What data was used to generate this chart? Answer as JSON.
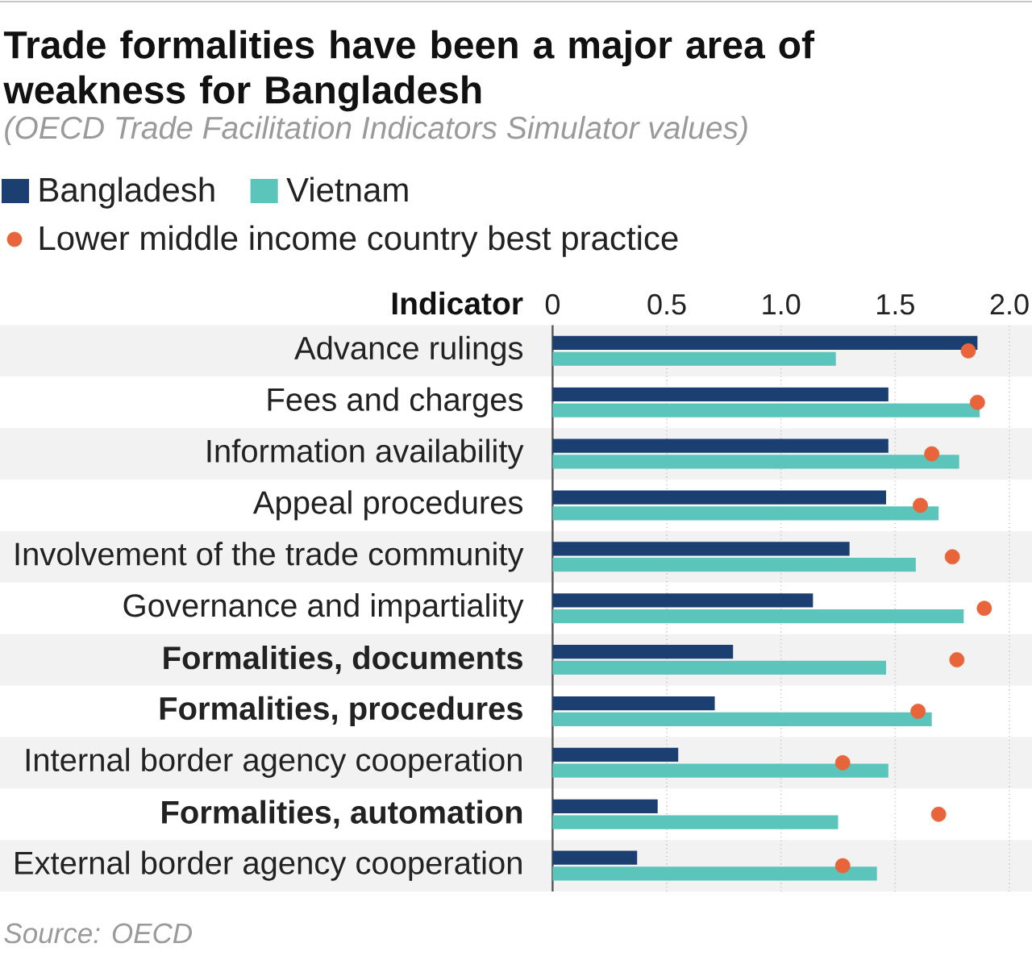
{
  "chart_data": {
    "type": "bar",
    "orientation": "horizontal",
    "title": "Trade formalities have been a major area of weakness for Bangladesh",
    "subtitle": "(OECD Trade Facilitation Indicators Simulator values)",
    "ylabel": "Indicator",
    "categories": [
      "Advance rulings",
      "Fees and charges",
      "Information availability",
      "Appeal procedures",
      "Involvement of the trade community",
      "Governance and impartiality",
      "**Formalities, documents**",
      "**Formalities, procedures**",
      "Internal border agency cooperation",
      "**Formalities, automation**",
      "External border agency cooperation"
    ],
    "series": [
      {
        "name": "Bangladesh",
        "color": "#1b3f70",
        "values": [
          1.86,
          1.47,
          1.47,
          1.46,
          1.3,
          1.14,
          0.79,
          0.71,
          0.55,
          0.46,
          0.37
        ]
      },
      {
        "name": "Vietnam",
        "color": "#5bc5bb",
        "values": [
          1.24,
          1.87,
          1.78,
          1.69,
          1.59,
          1.8,
          1.46,
          1.66,
          1.47,
          1.25,
          1.42
        ]
      },
      {
        "name": "Lower middle income country best practice",
        "type": "scatter",
        "marker": "circle",
        "color": "#e8643a",
        "values": [
          1.82,
          1.86,
          1.66,
          1.61,
          1.75,
          1.89,
          1.77,
          1.6,
          1.27,
          1.69,
          1.27
        ]
      }
    ],
    "xlim": [
      0,
      2
    ],
    "xticks": [
      0,
      0.5,
      {
        "value": 1,
        "label": "1.0"
      },
      1.5,
      {
        "value": 2,
        "label": "2.0"
      }
    ],
    "grid": "x",
    "legend": "top",
    "annotations": [
      "Source: OECD"
    ]
  }
}
